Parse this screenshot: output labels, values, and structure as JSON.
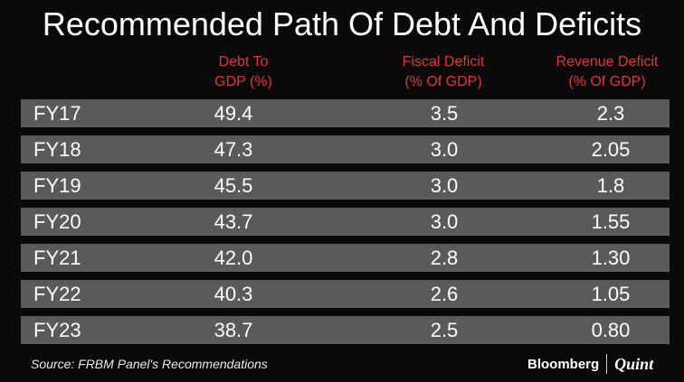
{
  "title": "Recommended Path Of Debt And Deficits",
  "header_color": "#e0353c",
  "row_color": "#5a5a5a",
  "chart_data": {
    "type": "table",
    "columns": [
      {
        "line1": "Debt To",
        "line2": "GDP (%)"
      },
      {
        "line1": "Fiscal Deficit",
        "line2": "(% Of GDP)"
      },
      {
        "line1": "Revenue Deficit",
        "line2": "(% Of GDP)"
      }
    ],
    "rows": [
      {
        "label": "FY17",
        "values": [
          "49.4",
          "3.5",
          "2.3"
        ]
      },
      {
        "label": "FY18",
        "values": [
          "47.3",
          "3.0",
          "2.05"
        ]
      },
      {
        "label": "FY19",
        "values": [
          "45.5",
          "3.0",
          "1.8"
        ]
      },
      {
        "label": "FY20",
        "values": [
          "43.7",
          "3.0",
          "1.55"
        ]
      },
      {
        "label": "FY21",
        "values": [
          "42.0",
          "2.8",
          "1.30"
        ]
      },
      {
        "label": "FY22",
        "values": [
          "40.3",
          "2.6",
          "1.05"
        ]
      },
      {
        "label": "FY23",
        "values": [
          "38.7",
          "2.5",
          "0.80"
        ]
      }
    ]
  },
  "source": "Source: FRBM Panel's Recommendations",
  "brand": {
    "primary": "Bloomberg",
    "secondary": "Quint"
  }
}
